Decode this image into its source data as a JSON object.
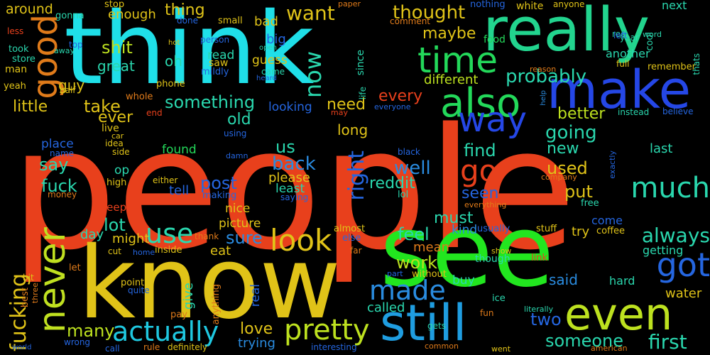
{
  "palette": {
    "background": "#000000"
  },
  "words": [
    {
      "text": "people",
      "color": "#e8401c"
    },
    {
      "text": "think",
      "color": "#1fdfe8"
    },
    {
      "text": "know",
      "color": "#e0c318"
    },
    {
      "text": "see",
      "color": "#22e61f"
    },
    {
      "text": "really",
      "color": "#22d48e"
    },
    {
      "text": "make",
      "color": "#2547e6"
    },
    {
      "text": "still",
      "color": "#1f9de0"
    },
    {
      "text": "even",
      "color": "#bde11f"
    },
    {
      "text": "never",
      "color": "#c0e020"
    },
    {
      "text": "also",
      "color": "#23d85a"
    },
    {
      "text": "time",
      "color": "#23d85a"
    },
    {
      "text": "good",
      "color": "#e07b1a"
    },
    {
      "text": "got",
      "color": "#2566e0"
    },
    {
      "text": "pretty",
      "color": "#bde11f"
    },
    {
      "text": "actually",
      "color": "#1fc8e0"
    },
    {
      "text": "way",
      "color": "#2547e6"
    },
    {
      "text": "much",
      "color": "#2ad7ae"
    },
    {
      "text": "go",
      "color": "#e8401c"
    },
    {
      "text": "look",
      "color": "#e0c318"
    },
    {
      "text": "made",
      "color": "#2a8ce0"
    },
    {
      "text": "use",
      "color": "#2ad7ae"
    },
    {
      "text": "fucking",
      "color": "#e0c318"
    },
    {
      "text": "now",
      "color": "#2ad7ae"
    },
    {
      "text": "thought",
      "color": "#e0c318"
    },
    {
      "text": "want",
      "color": "#e0c318"
    },
    {
      "text": "probably",
      "color": "#2ad7ae"
    },
    {
      "text": "something",
      "color": "#2ad7ae"
    },
    {
      "text": "always",
      "color": "#2ad7ae"
    },
    {
      "text": "someone",
      "color": "#2ad7ae"
    },
    {
      "text": "first",
      "color": "#2ad7ae"
    },
    {
      "text": "right",
      "color": "#2566e0"
    },
    {
      "text": "going",
      "color": "#2ad7ae"
    },
    {
      "text": "little",
      "color": "#e0c318"
    },
    {
      "text": "every",
      "color": "#e8401c"
    },
    {
      "text": "need",
      "color": "#e0c318"
    },
    {
      "text": "work",
      "color": "#bde11f"
    },
    {
      "text": "feel",
      "color": "#2ad7ae"
    },
    {
      "text": "take",
      "color": "#e0c318"
    },
    {
      "text": "many",
      "color": "#bde11f"
    },
    {
      "text": "love",
      "color": "#e0c318"
    },
    {
      "text": "two",
      "color": "#2566e0"
    },
    {
      "text": "back",
      "color": "#2a8ce0"
    },
    {
      "text": "well",
      "color": "#2a8ce0"
    },
    {
      "text": "find",
      "color": "#2ad7ae"
    },
    {
      "text": "used",
      "color": "#e0c318"
    },
    {
      "text": "new",
      "color": "#2ad7ae"
    },
    {
      "text": "put",
      "color": "#e0c318"
    },
    {
      "text": "seen",
      "color": "#2566e0"
    },
    {
      "text": "say",
      "color": "#2ad7ae"
    },
    {
      "text": "fuck",
      "color": "#2ad7ae"
    },
    {
      "text": "lot",
      "color": "#2ad7ae"
    },
    {
      "text": "post",
      "color": "#2566e0"
    },
    {
      "text": "sure",
      "color": "#2a8ce0"
    },
    {
      "text": "better",
      "color": "#bde11f"
    },
    {
      "text": "shit",
      "color": "#bde11f"
    },
    {
      "text": "thing",
      "color": "#e0c318"
    },
    {
      "text": "maybe",
      "color": "#e0c318"
    },
    {
      "text": "guy",
      "color": "#e0c318"
    },
    {
      "text": "great",
      "color": "#2ad7ae"
    },
    {
      "text": "oh",
      "color": "#2ad7ae"
    },
    {
      "text": "ever",
      "color": "#e0c318"
    },
    {
      "text": "old",
      "color": "#2ad7ae"
    },
    {
      "text": "us",
      "color": "#2ad7ae"
    },
    {
      "text": "long",
      "color": "#e0c318"
    },
    {
      "text": "reddit",
      "color": "#2ad7ae"
    },
    {
      "text": "must",
      "color": "#2ad7ae"
    },
    {
      "text": "kind",
      "color": "#2a8ce0"
    },
    {
      "text": "mean",
      "color": "#e07b1a"
    },
    {
      "text": "said",
      "color": "#2a8ce0"
    },
    {
      "text": "called",
      "color": "#2ad7ae"
    },
    {
      "text": "trying",
      "color": "#2a8ce0"
    },
    {
      "text": "different",
      "color": "#bde11f"
    },
    {
      "text": "give",
      "color": "#2ad7ae"
    },
    {
      "text": "eat",
      "color": "#e0c318"
    },
    {
      "text": "try",
      "color": "#e0c318"
    },
    {
      "text": "come",
      "color": "#2566e0"
    },
    {
      "text": "getting",
      "color": "#2ad7ae"
    },
    {
      "text": "water",
      "color": "#e0c318"
    },
    {
      "text": "might",
      "color": "#e0c318"
    },
    {
      "text": "day",
      "color": "#2ad7ae"
    },
    {
      "text": "found",
      "color": "#23d85a"
    },
    {
      "text": "place",
      "color": "#2566e0"
    },
    {
      "text": "tell",
      "color": "#2566e0"
    },
    {
      "text": "nice",
      "color": "#e0c318"
    },
    {
      "text": "picture",
      "color": "#e0c318"
    },
    {
      "text": "please",
      "color": "#e0c318"
    },
    {
      "text": "least",
      "color": "#2ad7ae"
    },
    {
      "text": "around",
      "color": "#e0c318"
    },
    {
      "text": "enough",
      "color": "#e0c318"
    },
    {
      "text": "read",
      "color": "#2ad7ae"
    },
    {
      "text": "guess",
      "color": "#e0c318"
    },
    {
      "text": "big",
      "color": "#2566e0"
    },
    {
      "text": "bad",
      "color": "#e0c318"
    },
    {
      "text": "another",
      "color": "#2ad7ae"
    },
    {
      "text": "next",
      "color": "#2ad7ae"
    },
    {
      "text": "last",
      "color": "#2ad7ae"
    },
    {
      "text": "hard",
      "color": "#2ad7ae"
    },
    {
      "text": "keep",
      "color": "#e8401c"
    },
    {
      "text": "op",
      "color": "#2ad7ae"
    },
    {
      "text": "buy",
      "color": "#2ad7ae"
    },
    {
      "text": "looking",
      "color": "#2566e0"
    },
    {
      "text": "stop",
      "color": "#e0c318"
    },
    {
      "text": "gonna",
      "color": "#2ad7ae"
    },
    {
      "text": "less",
      "color": "#e8401c"
    },
    {
      "text": "took",
      "color": "#2ad7ae"
    },
    {
      "text": "store",
      "color": "#2ad7ae"
    },
    {
      "text": "man",
      "color": "#e0c318"
    },
    {
      "text": "yeah",
      "color": "#e0c318"
    },
    {
      "text": "half",
      "color": "#e0c318"
    },
    {
      "text": "away",
      "color": "#2ad7ae"
    },
    {
      "text": "top",
      "color": "#2566e0"
    },
    {
      "text": "done",
      "color": "#2566e0"
    },
    {
      "text": "small",
      "color": "#e0c318"
    },
    {
      "text": "person",
      "color": "#2566e0"
    },
    {
      "text": "saw",
      "color": "#e0c318"
    },
    {
      "text": "mildly",
      "color": "#2566e0"
    },
    {
      "text": "came",
      "color": "#2ad7ae"
    },
    {
      "text": "heard",
      "color": "#2566e0"
    },
    {
      "text": "hot",
      "color": "#e0c318"
    },
    {
      "text": "open",
      "color": "#2ad7ae"
    },
    {
      "text": "phone",
      "color": "#e0c318"
    },
    {
      "text": "whole",
      "color": "#e07b1a"
    },
    {
      "text": "end",
      "color": "#e8401c"
    },
    {
      "text": "life",
      "color": "#2ad7ae"
    },
    {
      "text": "since",
      "color": "#2ad7ae"
    },
    {
      "text": "paper",
      "color": "#e07b1a"
    },
    {
      "text": "comment",
      "color": "#e07b1a"
    },
    {
      "text": "nothing",
      "color": "#2566e0"
    },
    {
      "text": "white",
      "color": "#e0c318"
    },
    {
      "text": "anyone",
      "color": "#e0c318"
    },
    {
      "text": "red",
      "color": "#2ad7ae"
    },
    {
      "text": "year",
      "color": "#2ad7ae"
    },
    {
      "text": "cool",
      "color": "#2ad7ae"
    },
    {
      "text": "word",
      "color": "#2ad7ae"
    },
    {
      "text": "food",
      "color": "#23d85a"
    },
    {
      "text": "left",
      "color": "#2566e0"
    },
    {
      "text": "full",
      "color": "#e0c318"
    },
    {
      "text": "reason",
      "color": "#e07b1a"
    },
    {
      "text": "remember",
      "color": "#e0c318"
    },
    {
      "text": "thats",
      "color": "#2ad7ae"
    },
    {
      "text": "instead",
      "color": "#2ad7ae"
    },
    {
      "text": "believe",
      "color": "#2566e0"
    },
    {
      "text": "help",
      "color": "#2a8ce0"
    },
    {
      "text": "everyone",
      "color": "#2566e0"
    },
    {
      "text": "may",
      "color": "#e8401c"
    },
    {
      "text": "live",
      "color": "#e0c318"
    },
    {
      "text": "car",
      "color": "#e0c318"
    },
    {
      "text": "idea",
      "color": "#e0c318"
    },
    {
      "text": "side",
      "color": "#e0c318"
    },
    {
      "text": "name",
      "color": "#2566e0"
    },
    {
      "text": "using",
      "color": "#2566e0"
    },
    {
      "text": "damn",
      "color": "#2566e0"
    },
    {
      "text": "either",
      "color": "#e0c318"
    },
    {
      "text": "high",
      "color": "#e0c318"
    },
    {
      "text": "money",
      "color": "#e07b1a"
    },
    {
      "text": "making",
      "color": "#2566e0"
    },
    {
      "text": "saying",
      "color": "#2566e0"
    },
    {
      "text": "black",
      "color": "#2566e0"
    },
    {
      "text": "lol",
      "color": "#2ad7ae"
    },
    {
      "text": "company",
      "color": "#e07b1a"
    },
    {
      "text": "exactly",
      "color": "#2566e0"
    },
    {
      "text": "everything",
      "color": "#e07b1a"
    },
    {
      "text": "free",
      "color": "#2ad7ae"
    },
    {
      "text": "coffee",
      "color": "#e0c318"
    },
    {
      "text": "stuff",
      "color": "#e0c318"
    },
    {
      "text": "usually",
      "color": "#2566e0"
    },
    {
      "text": "almost",
      "color": "#e0c318"
    },
    {
      "text": "else",
      "color": "#2566e0"
    },
    {
      "text": "far",
      "color": "#e07b1a"
    },
    {
      "text": "thank",
      "color": "#e07b1a"
    },
    {
      "text": "inside",
      "color": "#e0c318"
    },
    {
      "text": "home",
      "color": "#2566e0"
    },
    {
      "text": "cut",
      "color": "#e0c318"
    },
    {
      "text": "show",
      "color": "#e0c318"
    },
    {
      "text": "though",
      "color": "#2ad7ae"
    },
    {
      "text": "link",
      "color": "#e8401c"
    },
    {
      "text": "part",
      "color": "#2566e0"
    },
    {
      "text": "without",
      "color": "#e0c318"
    },
    {
      "text": "let",
      "color": "#e07b1a"
    },
    {
      "text": "bit",
      "color": "#e0c318"
    },
    {
      "text": "best",
      "color": "#e07b1a"
    },
    {
      "text": "three",
      "color": "#e07b1a"
    },
    {
      "text": "point",
      "color": "#e0c318"
    },
    {
      "text": "quite",
      "color": "#2566e0"
    },
    {
      "text": "pay",
      "color": "#e07b1a"
    },
    {
      "text": "real",
      "color": "#2566e0"
    },
    {
      "text": "anything",
      "color": "#e07b1a"
    },
    {
      "text": "ice",
      "color": "#2ad7ae"
    },
    {
      "text": "fun",
      "color": "#e07b1a"
    },
    {
      "text": "literally",
      "color": "#2ad7ae"
    },
    {
      "text": "gets",
      "color": "#2ad7ae"
    },
    {
      "text": "world",
      "color": "#2566e0"
    },
    {
      "text": "wrong",
      "color": "#2566e0"
    },
    {
      "text": "call",
      "color": "#2566e0"
    },
    {
      "text": "rule",
      "color": "#e07b1a"
    },
    {
      "text": "definitely",
      "color": "#e0c318"
    },
    {
      "text": "interesting",
      "color": "#2566e0"
    },
    {
      "text": "common",
      "color": "#e07b1a"
    },
    {
      "text": "went",
      "color": "#e0c318"
    },
    {
      "text": "american",
      "color": "#e07b1a"
    }
  ]
}
